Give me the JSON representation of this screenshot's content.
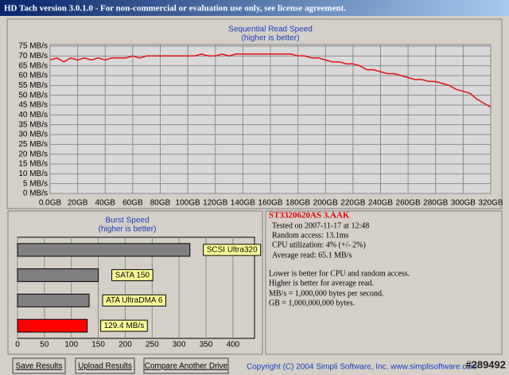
{
  "window": {
    "title": "HD Tach version 3.0.1.0  - For non-commercial or evaluation use only, see license agreement.",
    "drive": "ST3320620AS 3.AAK",
    "details": [
      "Tested on 2007-11-17 at 12:48",
      "Random access: 13.1ms",
      "CPU utilization: 4% (+/- 2%)",
      "Average read: 65.1 MB/s"
    ],
    "notes": [
      "Lower is better for CPU and random access.",
      "Higher is better for average read.",
      "MB/s = 1,000,000 bytes per second.",
      "GB = 1,000,000,000 bytes."
    ],
    "buttons": [
      "Save Results",
      "Upload Results",
      "Compare Another Drive"
    ],
    "copyright": "Copyright (C) 2004 Simpli Software, Inc. www.simplisoftware.com",
    "watermark": "#289492"
  },
  "chart_data": [
    {
      "type": "line",
      "title": "Sequential Read Speed",
      "subtitle": "(higher is better)",
      "color": "#e01010",
      "x": [
        0,
        5,
        10,
        15,
        20,
        25,
        30,
        35,
        40,
        45,
        50,
        55,
        60,
        65,
        70,
        75,
        80,
        85,
        90,
        95,
        100,
        105,
        110,
        115,
        120,
        125,
        130,
        135,
        140,
        145,
        150,
        155,
        160,
        165,
        170,
        175,
        180,
        185,
        190,
        195,
        200,
        205,
        210,
        215,
        220,
        225,
        230,
        235,
        240,
        245,
        250,
        255,
        260,
        265,
        270,
        275,
        280,
        285,
        290,
        295,
        300,
        305,
        310,
        315,
        320
      ],
      "values": [
        68,
        69,
        67,
        69,
        68,
        69,
        68,
        69,
        68,
        69,
        69,
        69,
        70,
        69,
        70,
        70,
        70,
        70,
        70,
        70,
        70,
        70,
        71,
        70,
        70,
        71,
        70,
        71,
        71,
        71,
        71,
        71,
        71,
        71,
        71,
        71,
        70,
        70,
        69,
        69,
        68,
        67,
        67,
        66,
        66,
        65,
        63,
        63,
        62,
        61,
        61,
        60,
        59,
        58,
        58,
        57,
        57,
        56,
        55,
        53,
        52,
        51,
        48,
        46,
        44
      ],
      "xlim": [
        0,
        320
      ],
      "xticks": [
        {
          "value": 0,
          "label": "0.0GB"
        },
        {
          "value": 20,
          "label": "20GB"
        },
        {
          "value": 40,
          "label": "40GB"
        },
        {
          "value": 60,
          "label": "60GB"
        },
        {
          "value": 80,
          "label": "80GB"
        },
        {
          "value": 100,
          "label": "100GB"
        },
        {
          "value": 120,
          "label": "120GB"
        },
        {
          "value": 140,
          "label": "140GB"
        },
        {
          "value": 160,
          "label": "160GB"
        },
        {
          "value": 180,
          "label": "180GB"
        },
        {
          "value": 200,
          "label": "200GB"
        },
        {
          "value": 220,
          "label": "220GB"
        },
        {
          "value": 240,
          "label": "240GB"
        },
        {
          "value": 260,
          "label": "260GB"
        },
        {
          "value": 280,
          "label": "280GB"
        },
        {
          "value": 300,
          "label": "300GB"
        },
        {
          "value": 320,
          "label": "320GB"
        }
      ],
      "ylim": [
        0,
        75
      ],
      "yticks": [
        {
          "value": 0,
          "label": "0 MB/s"
        },
        {
          "value": 5,
          "label": "5 MB/s"
        },
        {
          "value": 10,
          "label": "10 MB/s"
        },
        {
          "value": 15,
          "label": "15 MB/s"
        },
        {
          "value": 20,
          "label": "20 MB/s"
        },
        {
          "value": 25,
          "label": "25 MB/s"
        },
        {
          "value": 30,
          "label": "30 MB/s"
        },
        {
          "value": 35,
          "label": "35 MB/s"
        },
        {
          "value": 40,
          "label": "40 MB/s"
        },
        {
          "value": 45,
          "label": "45 MB/s"
        },
        {
          "value": 50,
          "label": "50 MB/s"
        },
        {
          "value": 55,
          "label": "55 MB/s"
        },
        {
          "value": 60,
          "label": "60 MB/s"
        },
        {
          "value": 65,
          "label": "65 MB/s"
        },
        {
          "value": 70,
          "label": "70 MB/s"
        },
        {
          "value": 75,
          "label": "75 MB/s"
        }
      ],
      "grid": true
    },
    {
      "type": "hbar",
      "title": "Burst Speed",
      "subtitle": "(higher is better)",
      "categories": [
        "SCSI Ultra320",
        "SATA 150",
        "ATA UltraDMA 6",
        null
      ],
      "values": [
        320,
        150,
        133,
        129.4
      ],
      "value_labels": [
        null,
        null,
        null,
        "129.4 MB/s"
      ],
      "colors": [
        "#808080",
        "#808080",
        "#808080",
        "#ff0000"
      ],
      "xlim": [
        0,
        440
      ],
      "xticks": [
        0,
        50,
        100,
        150,
        200,
        250,
        300,
        350,
        400
      ],
      "grid": true
    }
  ]
}
